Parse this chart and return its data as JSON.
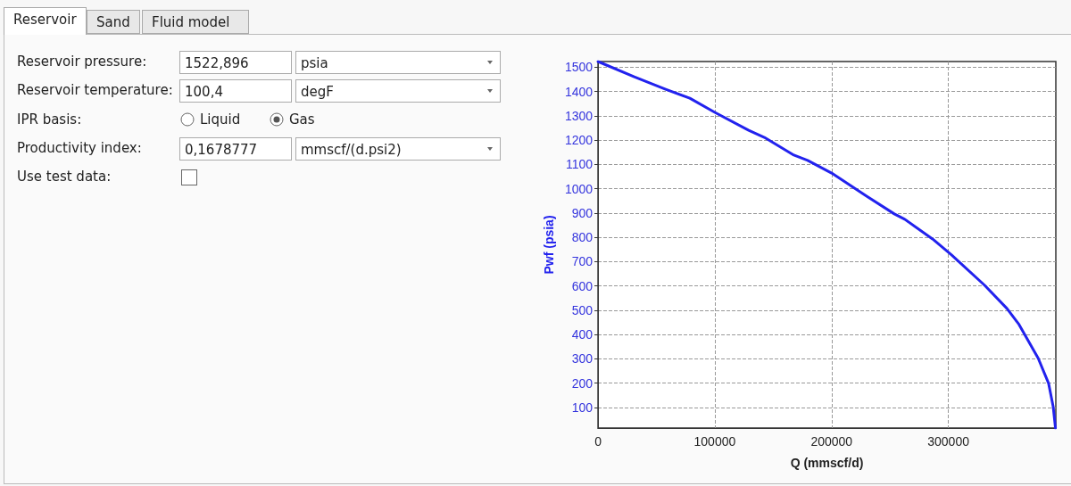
{
  "chart_data": [
    {
      "type": "other",
      "annotations": [
        "Reservoir",
        "Sand",
        "Fluid model",
        "Reservoir pressure:",
        "1522,896",
        "psia",
        "Reservoir temperature:",
        "100,4",
        "degF",
        "IPR basis:",
        "Liquid",
        "Gas",
        "Productivity index:",
        "0,1678777",
        "mmscf/(d.psi2)",
        "Use test data:"
      ]
    },
    {
      "type": "line",
      "xlabel": "Q (mmscf/d)",
      "ylabel": "Pwf (psia)",
      "xlim": [
        0,
        392000
      ],
      "ylim": [
        15,
        1523
      ],
      "xticks": [
        0,
        100000,
        200000,
        300000
      ],
      "yticks": [
        100,
        200,
        300,
        400,
        500,
        600,
        700,
        800,
        900,
        1000,
        1100,
        1200,
        1300,
        1400,
        1500
      ],
      "grid": true,
      "series": [
        {
          "color": "#2222ee",
          "x": [
            0,
            31000,
            57900,
            78600,
            100000,
            129000,
            142400,
            167700,
            179500,
            200000,
            230000,
            253700,
            262600,
            286400,
            302700,
            330900,
            350100,
            360500,
            376900,
            385800,
            389700,
            391700
          ],
          "values": [
            1523,
            1460,
            1409,
            1372,
            1314,
            1240,
            1211,
            1138,
            1116,
            1064,
            969,
            896,
            874,
            793,
            727,
            603,
            507,
            441,
            302,
            199,
            104,
            15
          ]
        }
      ]
    }
  ]
}
